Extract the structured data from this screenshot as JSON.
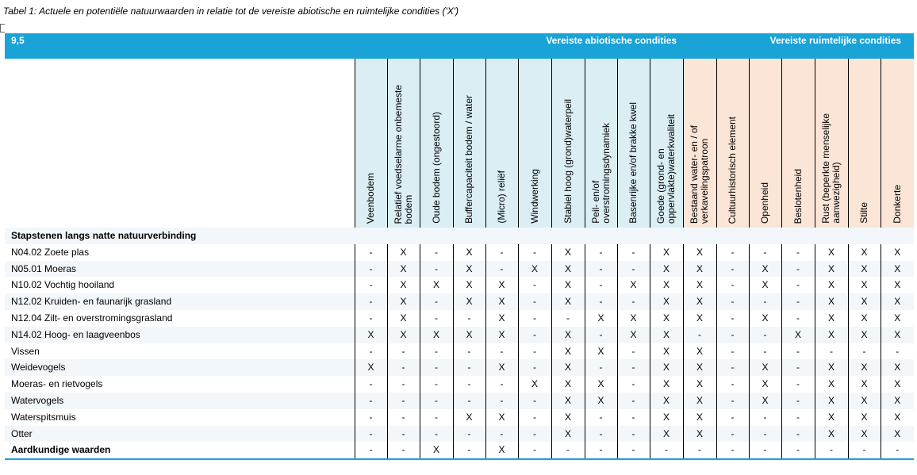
{
  "caption": "Tabel 1: Actuele en potentiële natuurwaarden in relatie tot de vereiste abiotische en ruimtelijke condities ('X')",
  "header": {
    "code": "9,5",
    "abiotic_title": "Vereiste abiotische condities",
    "spatial_title": "Vereiste ruimtelijke condities"
  },
  "columns": [
    {
      "label": "Veenbodem",
      "group": "abiotic"
    },
    {
      "label": "Relatief voedselarme onbemeste\nbodem",
      "group": "abiotic"
    },
    {
      "label": "Oude bodem (ongestoord)",
      "group": "abiotic"
    },
    {
      "label": "Buffercapaciteit bodem / water",
      "group": "abiotic"
    },
    {
      "label": "(Micro) reliëf",
      "group": "abiotic"
    },
    {
      "label": "Windwerking",
      "group": "abiotic"
    },
    {
      "label": "Stabiel hoog (grond)waterpeil",
      "group": "abiotic"
    },
    {
      "label": "Peil- en/of\noverstromingsdynamiek",
      "group": "abiotic"
    },
    {
      "label": "Basenrijke en/of brakke kwel",
      "group": "abiotic"
    },
    {
      "label": "Goede (grond- en\noppervlakte)waterkwaliteit",
      "group": "abiotic"
    },
    {
      "label": "Bestaand water- en / of\nverkavelingspatroon",
      "group": "spatial"
    },
    {
      "label": "Cultuurhistorisch element",
      "group": "spatial"
    },
    {
      "label": "Openheid",
      "group": "spatial"
    },
    {
      "label": "Beslotenheid",
      "group": "spatial"
    },
    {
      "label": "Rust (beperkte menselijke\naanwezigheid)",
      "group": "spatial"
    },
    {
      "label": "Stilte",
      "group": "spatial"
    },
    {
      "label": "Donkerte",
      "group": "spatial"
    }
  ],
  "section_title": "Stapstenen langs natte natuurverbinding",
  "rows": [
    {
      "label": "N04.02 Zoete plas",
      "values": [
        "-",
        "X",
        "-",
        "X",
        "-",
        "-",
        "X",
        "-",
        "-",
        "X",
        "X",
        "-",
        "-",
        "-",
        "X",
        "X",
        "X"
      ]
    },
    {
      "label": "N05.01 Moeras",
      "values": [
        "-",
        "X",
        "-",
        "X",
        "-",
        "X",
        "X",
        "-",
        "-",
        "X",
        "X",
        "-",
        "X",
        "-",
        "X",
        "X",
        "X"
      ]
    },
    {
      "label": "N10.02 Vochtig hooiland",
      "values": [
        "-",
        "X",
        "X",
        "X",
        "X",
        "-",
        "X",
        "-",
        "X",
        "X",
        "X",
        "-",
        "X",
        "-",
        "X",
        "X",
        "X"
      ]
    },
    {
      "label": "N12.02 Kruiden- en faunarijk grasland",
      "values": [
        "-",
        "X",
        "-",
        "X",
        "X",
        "-",
        "X",
        "-",
        "-",
        "X",
        "X",
        "-",
        "-",
        "-",
        "X",
        "X",
        "X"
      ]
    },
    {
      "label": "N12.04 Zilt- en overstromingsgrasland",
      "values": [
        "-",
        "X",
        "-",
        "-",
        "X",
        "-",
        "-",
        "X",
        "X",
        "X",
        "X",
        "-",
        "X",
        "-",
        "X",
        "X",
        "X"
      ]
    },
    {
      "label": "N14.02 Hoog- en laagveenbos",
      "values": [
        "X",
        "X",
        "X",
        "X",
        "X",
        "-",
        "X",
        "-",
        "X",
        "X",
        "-",
        "-",
        "-",
        "X",
        "X",
        "X",
        "X"
      ]
    },
    {
      "label": "Vissen",
      "values": [
        "-",
        "-",
        "-",
        "-",
        "-",
        "-",
        "X",
        "X",
        "-",
        "X",
        "X",
        "-",
        "-",
        "-",
        "-",
        "-",
        "-"
      ]
    },
    {
      "label": "Weidevogels",
      "values": [
        "X",
        "-",
        "-",
        "-",
        "X",
        "-",
        "X",
        "-",
        "-",
        "X",
        "X",
        "-",
        "X",
        "-",
        "X",
        "X",
        "X"
      ]
    },
    {
      "label": "Moeras- en rietvogels",
      "values": [
        "-",
        "-",
        "-",
        "-",
        "-",
        "X",
        "X",
        "X",
        "-",
        "X",
        "X",
        "-",
        "X",
        "-",
        "X",
        "X",
        "X"
      ]
    },
    {
      "label": "Watervogels",
      "values": [
        "-",
        "-",
        "-",
        "-",
        "-",
        "-",
        "X",
        "X",
        "-",
        "X",
        "X",
        "-",
        "X",
        "-",
        "X",
        "X",
        "X"
      ]
    },
    {
      "label": "Waterspitsmuis",
      "values": [
        "-",
        "-",
        "-",
        "X",
        "X",
        "-",
        "X",
        "-",
        "-",
        "X",
        "X",
        "-",
        "-",
        "-",
        "X",
        "X",
        "X"
      ]
    },
    {
      "label": "Otter",
      "values": [
        "-",
        "-",
        "-",
        "-",
        "-",
        "-",
        "X",
        "-",
        "-",
        "X",
        "X",
        "-",
        "-",
        "-",
        "X",
        "X",
        "X"
      ]
    },
    {
      "label": "Aardkundige waarden",
      "bold": true,
      "values": [
        "-",
        "-",
        "X",
        "-",
        "X",
        "-",
        "-",
        "-",
        "-",
        "-",
        "-",
        "-",
        "-",
        "-",
        "-",
        "-",
        "-"
      ]
    }
  ]
}
